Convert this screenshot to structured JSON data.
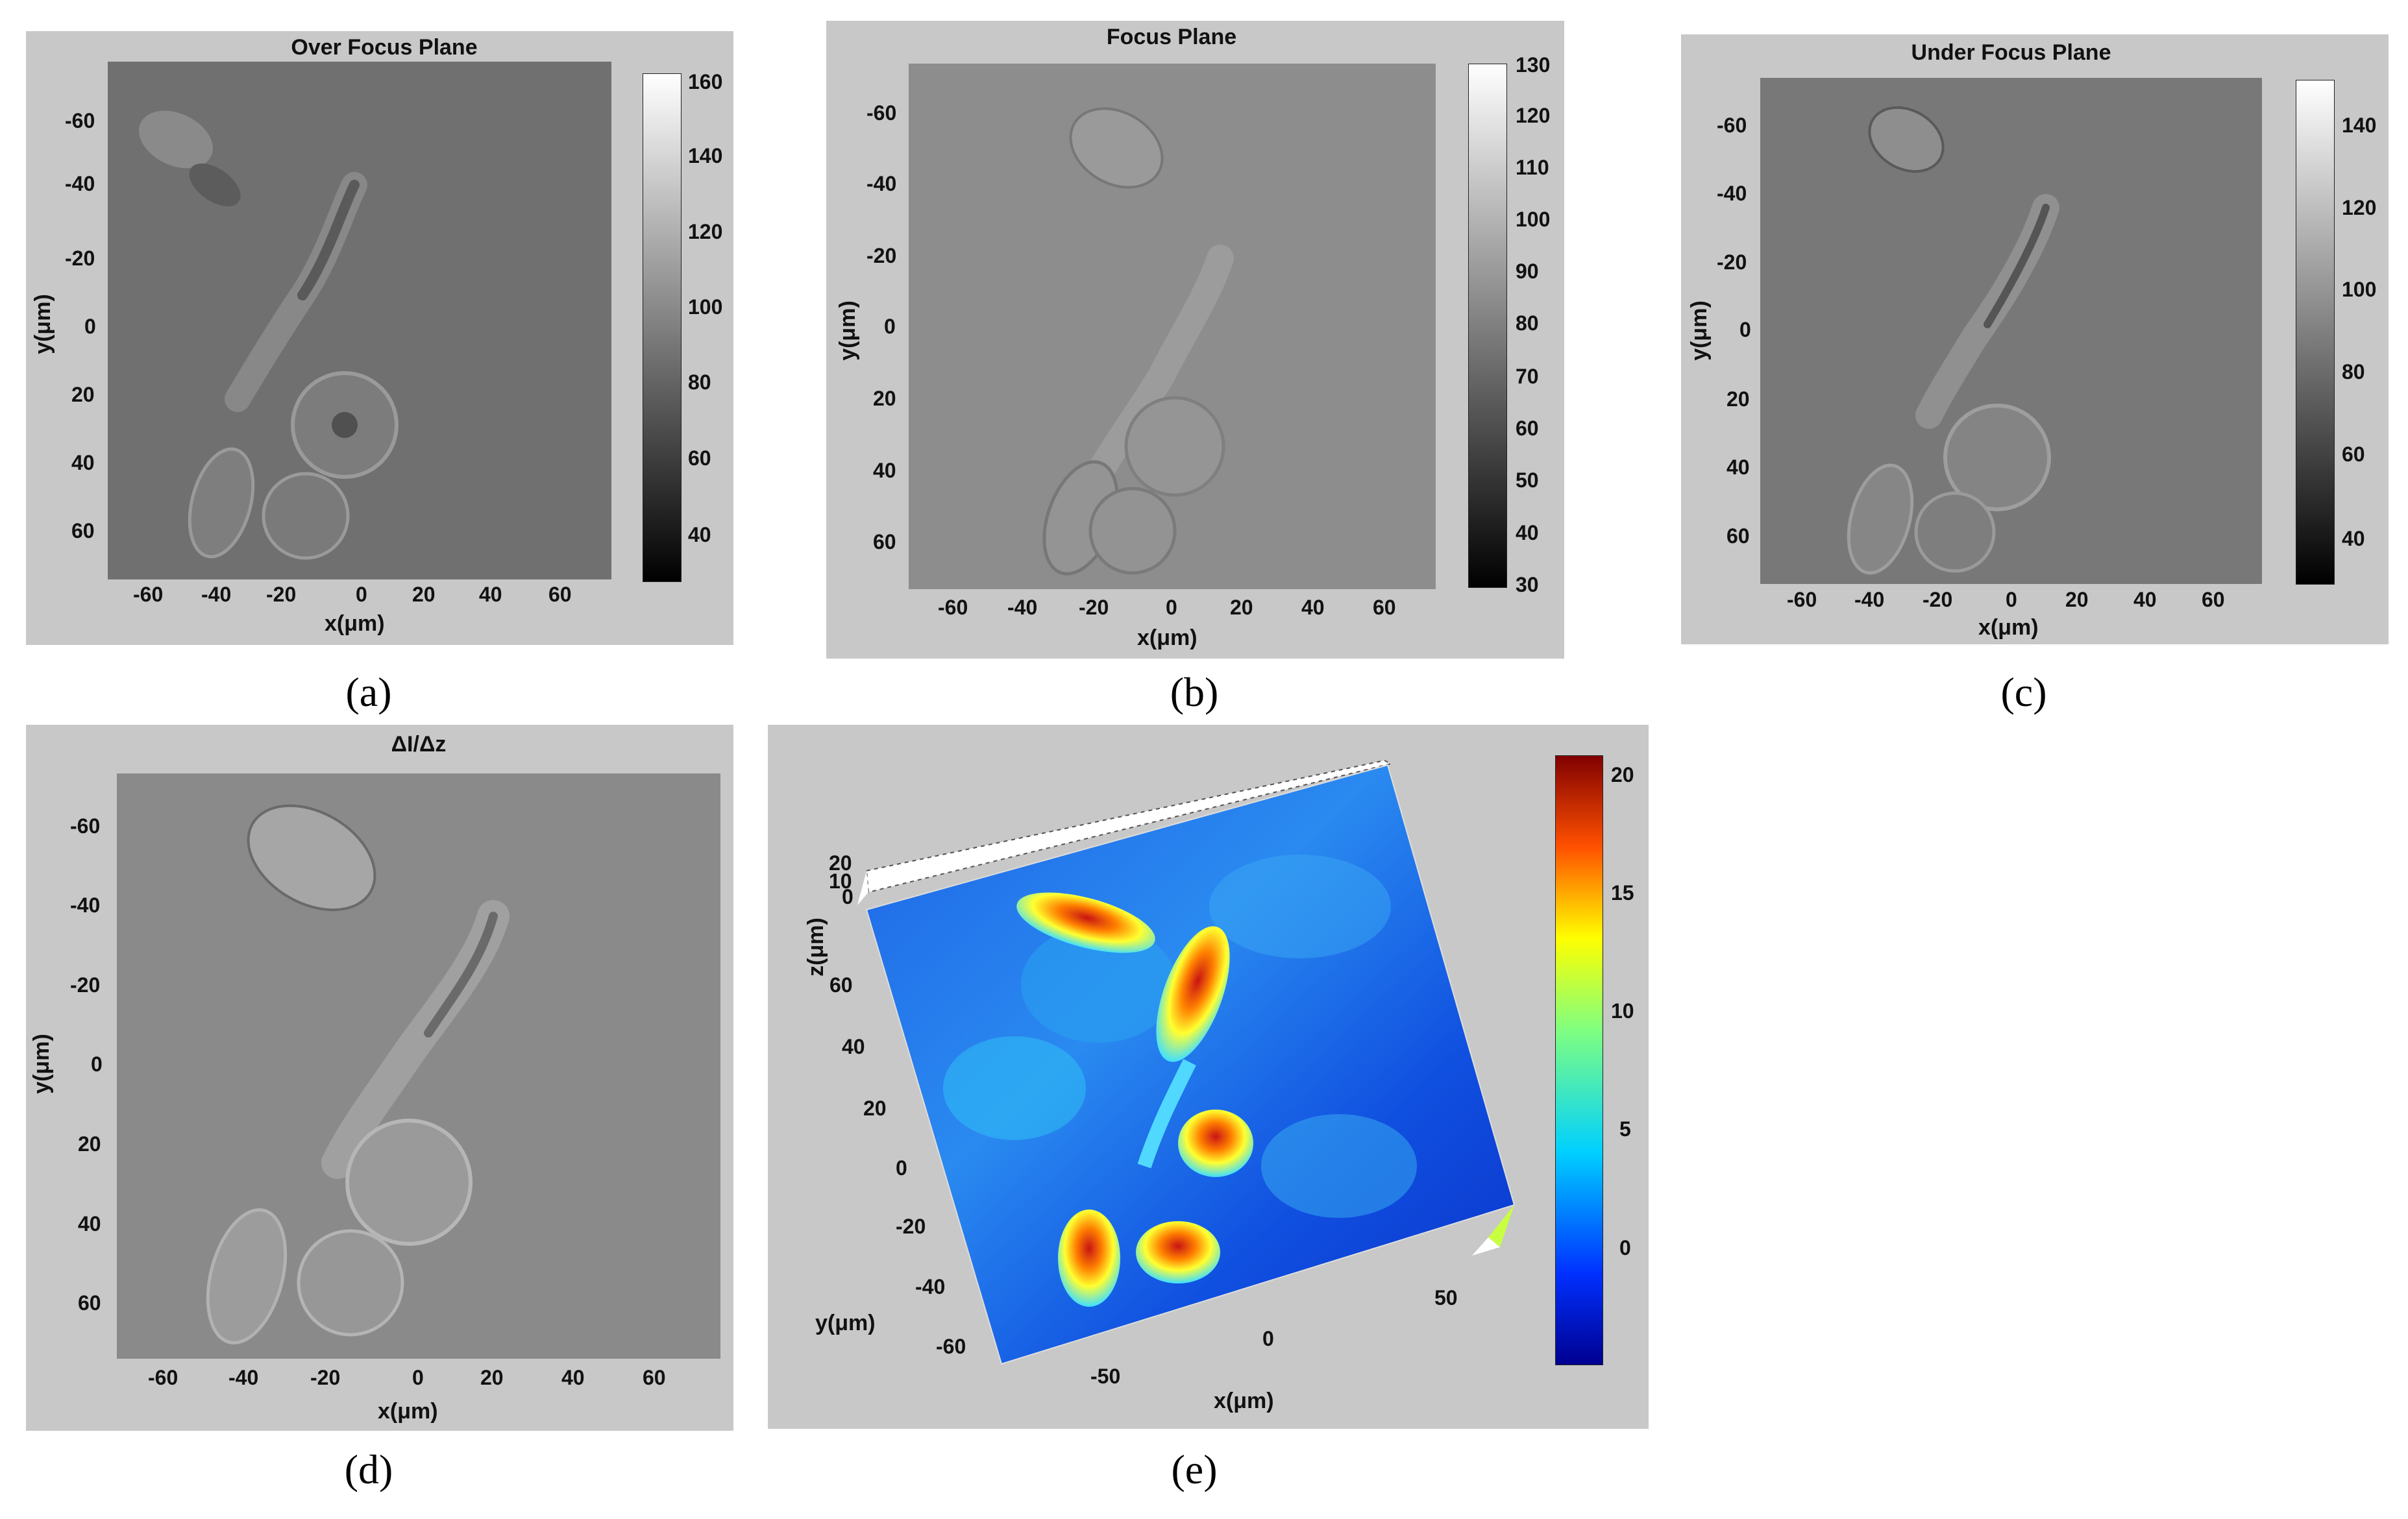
{
  "figure": {
    "panels": [
      {
        "id": "a",
        "label": "(a)",
        "title": "Over Focus Plane",
        "xlabel": "x(μm)",
        "ylabel": "y(μm)",
        "xticks": [
          "-60",
          "-40",
          "-20",
          "0",
          "20",
          "40",
          "60"
        ],
        "yticks": [
          "-60",
          "-40",
          "-20",
          "0",
          "20",
          "40",
          "60"
        ],
        "colorbar_ticks": [
          "160",
          "140",
          "120",
          "100",
          "80",
          "60",
          "40"
        ],
        "colormap": "gray",
        "colors": {
          "image_mean": "#6f6f6f"
        }
      },
      {
        "id": "b",
        "label": "(b)",
        "title": "Focus Plane",
        "xlabel": "x(μm)",
        "ylabel": "y(μm)",
        "xticks": [
          "-60",
          "-40",
          "-20",
          "0",
          "20",
          "40",
          "60"
        ],
        "yticks": [
          "-60",
          "-40",
          "-20",
          "0",
          "20",
          "40",
          "60"
        ],
        "colorbar_ticks": [
          "130",
          "120",
          "110",
          "100",
          "90",
          "80",
          "70",
          "60",
          "50",
          "40",
          "30"
        ],
        "colormap": "gray",
        "colors": {
          "image_mean": "#8e8e8e"
        }
      },
      {
        "id": "c",
        "label": "(c)",
        "title": "Under Focus Plane",
        "xlabel": "x(μm)",
        "ylabel": "y(μm)",
        "xticks": [
          "-60",
          "-40",
          "-20",
          "0",
          "20",
          "40",
          "60"
        ],
        "yticks": [
          "-60",
          "-40",
          "-20",
          "0",
          "20",
          "40",
          "60"
        ],
        "colorbar_ticks": [
          "140",
          "120",
          "100",
          "80",
          "60",
          "40"
        ],
        "colormap": "gray",
        "colors": {
          "image_mean": "#7a7a7a"
        }
      },
      {
        "id": "d",
        "label": "(d)",
        "title": "ΔI/Δz",
        "xlabel": "x(μm)",
        "ylabel": "y(μm)",
        "xticks": [
          "-60",
          "-40",
          "-20",
          "0",
          "20",
          "40",
          "60"
        ],
        "yticks": [
          "-60",
          "-40",
          "-20",
          "0",
          "20",
          "40",
          "60"
        ],
        "colormap": "gray",
        "colors": {
          "image_mean": "#8a8a8a"
        }
      },
      {
        "id": "e",
        "label": "(e)",
        "xlabel": "x(μm)",
        "ylabel": "y(μm)",
        "zlabel": "z(μm)",
        "xticks": [
          "-50",
          "0",
          "50"
        ],
        "yticks": [
          "60",
          "40",
          "20",
          "0",
          "-20",
          "-40",
          "-60"
        ],
        "zticks": [
          "20",
          "10",
          "0"
        ],
        "colorbar_ticks": [
          "20",
          "15",
          "10",
          "5",
          "0"
        ],
        "colormap": "jet",
        "colors": {
          "background": "#1e64e6",
          "peak": "#c81414"
        }
      }
    ]
  }
}
